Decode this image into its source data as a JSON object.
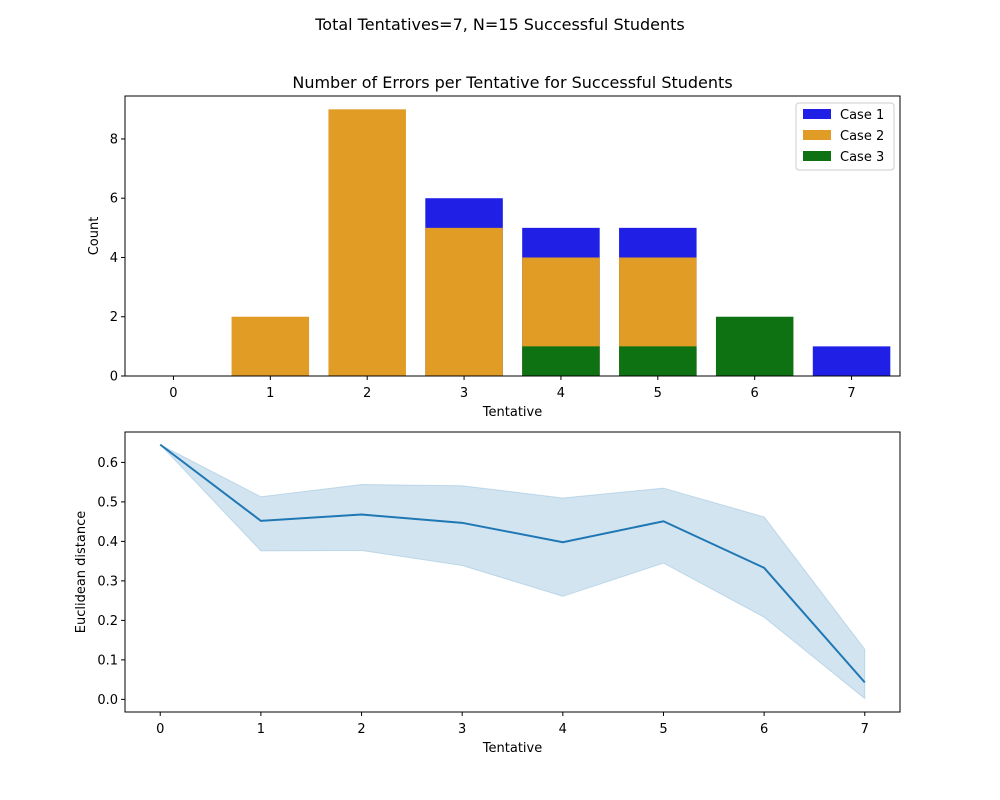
{
  "suptitle": "Total Tentatives=7, N=15 Successful Students",
  "chart_data": [
    {
      "type": "bar",
      "title": "Number of Errors per Tentative for Successful Students",
      "xlabel": "Tentative",
      "ylabel": "Count",
      "categories": [
        "0",
        "1",
        "2",
        "3",
        "4",
        "5",
        "6",
        "7"
      ],
      "ylim": [
        0,
        9.45
      ],
      "yticks": [
        0,
        2,
        4,
        6,
        8
      ],
      "overlaid": true,
      "legend_position": "top-right",
      "series": [
        {
          "name": "Case 1",
          "color": "#1f1fe6",
          "values": [
            0,
            0,
            0,
            6,
            5,
            5,
            0,
            1
          ]
        },
        {
          "name": "Case 2",
          "color": "#e09c24",
          "values": [
            0,
            2,
            9,
            5,
            4,
            4,
            0,
            0
          ]
        },
        {
          "name": "Case 3",
          "color": "#0f7212",
          "values": [
            0,
            0,
            0,
            0,
            1,
            1,
            2,
            0
          ]
        }
      ]
    },
    {
      "type": "line",
      "xlabel": "Tentative",
      "ylabel": "Euclidean distance",
      "x": [
        0,
        1,
        2,
        3,
        4,
        5,
        6,
        7
      ],
      "xlim": [
        -0.35,
        7.35
      ],
      "ylim": [
        -0.032,
        0.677
      ],
      "yticks": [
        0.0,
        0.1,
        0.2,
        0.3,
        0.4,
        0.5,
        0.6
      ],
      "series": [
        {
          "color": "#1f77b4",
          "values": [
            0.645,
            0.452,
            0.468,
            0.447,
            0.398,
            0.451,
            0.333,
            0.043
          ],
          "ci_low": [
            0.645,
            0.376,
            0.377,
            0.339,
            0.261,
            0.345,
            0.208,
            0.002
          ],
          "ci_high": [
            0.645,
            0.513,
            0.544,
            0.541,
            0.51,
            0.535,
            0.462,
            0.127
          ]
        }
      ]
    }
  ]
}
